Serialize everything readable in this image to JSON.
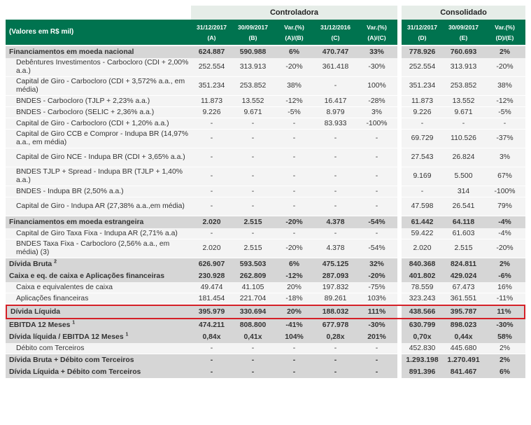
{
  "header": {
    "unit_label": "(Valores em R$ mil)",
    "group_controladora": "Controladora",
    "group_consolidado": "Consolidado",
    "columns": [
      {
        "label": "31/12/2017",
        "sub": "(A)"
      },
      {
        "label": "30/09/2017",
        "sub": "(B)"
      },
      {
        "label": "Var.(%)",
        "sub": "(A)/(B)"
      },
      {
        "label": "31/12/2016",
        "sub": "(C)"
      },
      {
        "label": "Var.(%)",
        "sub": "(A)/(C)"
      },
      {
        "label": "31/12/2017",
        "sub": "(D)"
      },
      {
        "label": "30/09/2017",
        "sub": "(E)"
      },
      {
        "label": "Var.(%)",
        "sub": "(D)/(E)"
      }
    ]
  },
  "rows": [
    {
      "label": "Financiamentos em moeda nacional",
      "type": "group",
      "values": [
        "624.887",
        "590.988",
        "6%",
        "470.747",
        "33%",
        "778.926",
        "760.693",
        "2%"
      ]
    },
    {
      "label": "Debêntures Investimentos - Carbocloro (CDI + 2,00% a.a.)",
      "type": "sub",
      "values": [
        "252.554",
        "313.913",
        "-20%",
        "361.418",
        "-30%",
        "252.554",
        "313.913",
        "-20%"
      ]
    },
    {
      "label": "Capital de Giro - Carbocloro (CDI + 3,572% a.a., em média)",
      "type": "sub",
      "values": [
        "351.234",
        "253.852",
        "38%",
        "-",
        "100%",
        "351.234",
        "253.852",
        "38%"
      ]
    },
    {
      "label": "BNDES - Carbocloro (TJLP + 2,23% a.a.)",
      "type": "sub",
      "values": [
        "11.873",
        "13.552",
        "-12%",
        "16.417",
        "-28%",
        "11.873",
        "13.552",
        "-12%"
      ]
    },
    {
      "label": "BNDES - Carbocloro (SELIC + 2,36% a.a.)",
      "type": "sub",
      "values": [
        "9.226",
        "9.671",
        "-5%",
        "8.979",
        "3%",
        "9.226",
        "9.671",
        "-5%"
      ]
    },
    {
      "label": "Capital de Giro - Carbocloro (CDI + 1,20% a.a.)",
      "type": "sub",
      "values": [
        "-",
        "-",
        "-",
        "83.933",
        "-100%",
        "-",
        "-",
        "-"
      ]
    },
    {
      "label": "Capital de Giro CCB e Compror - Indupa BR (14,97% a.a., em média)",
      "type": "sub",
      "values": [
        "-",
        "-",
        "-",
        "-",
        "-",
        "69.729",
        "110.526",
        "-37%"
      ]
    },
    {
      "label": "Capital de Giro NCE - Indupa BR (CDI + 3,65% a.a.)",
      "type": "sub",
      "values": [
        "-",
        "-",
        "-",
        "-",
        "-",
        "27.543",
        "26.824",
        "3%"
      ]
    },
    {
      "label": "BNDES TJLP + Spread - Indupa BR (TJLP + 1,40% a.a.)",
      "type": "sub",
      "values": [
        "-",
        "-",
        "-",
        "-",
        "-",
        "9.169",
        "5.500",
        "67%"
      ]
    },
    {
      "label": "BNDES - Indupa BR (2,50% a.a.)",
      "type": "sub",
      "values": [
        "-",
        "-",
        "-",
        "-",
        "-",
        "-",
        "314",
        "-100%"
      ]
    },
    {
      "label": "Capital de Giro - Indupa AR (27,38% a.a.,em média)",
      "type": "sub",
      "values": [
        "-",
        "-",
        "-",
        "-",
        "-",
        "47.598",
        "26.541",
        "79%"
      ]
    },
    {
      "label": "Financiamentos em moeda estrangeira",
      "type": "group",
      "values": [
        "2.020",
        "2.515",
        "-20%",
        "4.378",
        "-54%",
        "61.442",
        "64.118",
        "-4%"
      ]
    },
    {
      "label": "Capital de Giro Taxa Fixa - Indupa AR (2,71% a.a)",
      "type": "sub",
      "values": [
        "-",
        "-",
        "-",
        "-",
        "-",
        "59.422",
        "61.603",
        "-4%"
      ]
    },
    {
      "label": "BNDES Taxa Fixa - Carbocloro (2,56% a.a., em média) (3)",
      "type": "sub",
      "values": [
        "2.020",
        "2.515",
        "-20%",
        "4.378",
        "-54%",
        "2.020",
        "2.515",
        "-20%"
      ]
    },
    {
      "label": "Dívida Bruta",
      "sup": "2",
      "type": "total",
      "values": [
        "626.907",
        "593.503",
        "6%",
        "475.125",
        "32%",
        "840.368",
        "824.811",
        "2%"
      ]
    },
    {
      "label": "Caixa e eq. de caixa e Aplicações financeiras",
      "type": "group",
      "values": [
        "230.928",
        "262.809",
        "-12%",
        "287.093",
        "-20%",
        "401.802",
        "429.024",
        "-6%"
      ]
    },
    {
      "label": "Caixa e equivalentes de caixa",
      "type": "sub",
      "values": [
        "49.474",
        "41.105",
        "20%",
        "197.832",
        "-75%",
        "78.559",
        "67.473",
        "16%"
      ]
    },
    {
      "label": "Aplicações financeiras",
      "type": "sub",
      "values": [
        "181.454",
        "221.704",
        "-18%",
        "89.261",
        "103%",
        "323.243",
        "361.551",
        "-11%"
      ]
    },
    {
      "label": "Dívida Líquida",
      "type": "highlight",
      "values": [
        "395.979",
        "330.694",
        "20%",
        "188.032",
        "111%",
        "438.566",
        "395.787",
        "11%"
      ]
    },
    {
      "label": "EBITDA 12 Meses",
      "sup": "1",
      "type": "total",
      "values": [
        "474.211",
        "808.800",
        "-41%",
        "677.978",
        "-30%",
        "630.799",
        "898.023",
        "-30%"
      ]
    },
    {
      "label": "Dívida líquida / EBITDA 12 Meses",
      "sup": "1",
      "type": "total",
      "values": [
        "0,84x",
        "0,41x",
        "104%",
        "0,28x",
        "201%",
        "0,70x",
        "0,44x",
        "58%"
      ]
    },
    {
      "label": "Débito com Terceiros",
      "type": "sub",
      "values": [
        "-",
        "-",
        "-",
        "-",
        "-",
        "452.830",
        "445.680",
        "2%"
      ]
    },
    {
      "label": "Dívida Bruta + Débito com Terceiros",
      "type": "total",
      "values": [
        "-",
        "-",
        "-",
        "-",
        "-",
        "1.293.198",
        "1.270.491",
        "2%"
      ]
    },
    {
      "label": "Dívida Líquida + Débito com Terceiros",
      "type": "total",
      "values": [
        "-",
        "-",
        "-",
        "-",
        "-",
        "891.396",
        "841.467",
        "6%"
      ]
    }
  ]
}
